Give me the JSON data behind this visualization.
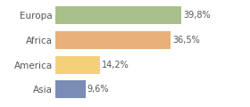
{
  "categories": [
    "Asia",
    "America",
    "Africa",
    "Europa"
  ],
  "values": [
    9.6,
    14.2,
    36.5,
    39.8
  ],
  "bar_colors": [
    "#7b8db5",
    "#f5d07a",
    "#e8b07a",
    "#a8c08a"
  ],
  "labels": [
    "9,6%",
    "14,2%",
    "36,5%",
    "39,8%"
  ],
  "xlim": [
    0,
    52
  ],
  "background_color": "#ffffff",
  "text_color": "#555555",
  "bar_height": 0.72,
  "label_fontsize": 7.0,
  "tick_fontsize": 7.5
}
